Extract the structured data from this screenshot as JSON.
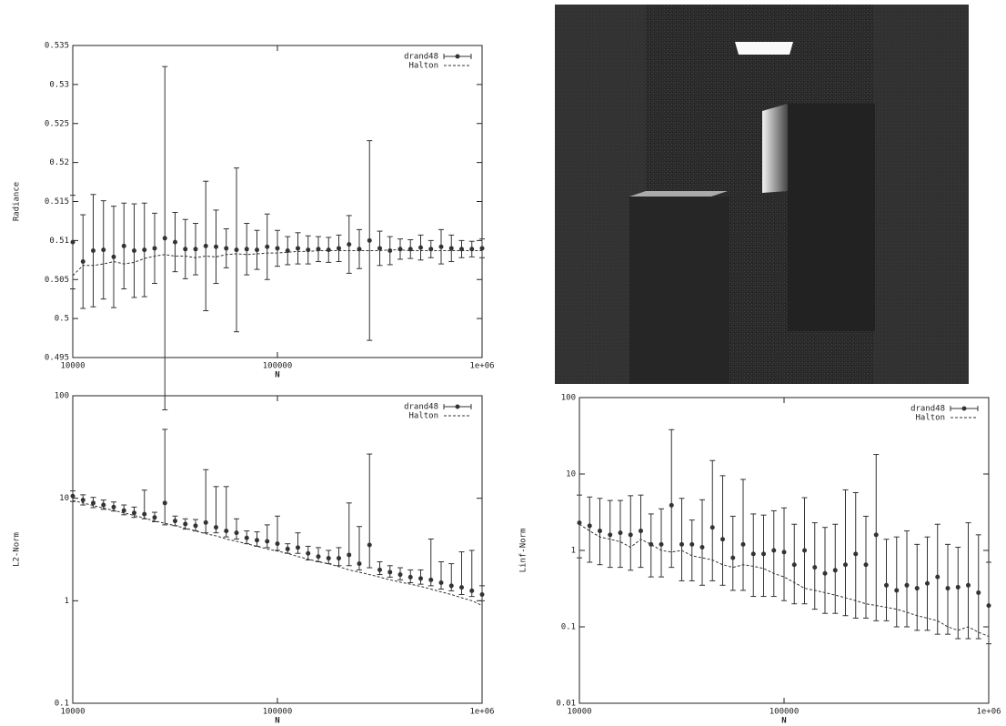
{
  "chart_data": [
    {
      "type": "errorbar",
      "x_label": "N",
      "y_label": "Radiance",
      "xlog": true,
      "ylog": false,
      "legend": "upper right",
      "xlim": [
        10000,
        1000000
      ],
      "xticks": [
        10000,
        100000,
        {
          "value": 1000000,
          "label": "1e+06"
        }
      ],
      "ylim": [
        0.495,
        0.535
      ],
      "yticks": [
        0.495,
        0.5,
        0.505,
        0.51,
        0.515,
        0.52,
        0.525,
        0.53,
        0.535
      ],
      "x": [
        10000,
        11220,
        12589,
        14125,
        15849,
        17783,
        19953,
        22387,
        25119,
        28184,
        31623,
        35481,
        39811,
        44668,
        50119,
        56234,
        63096,
        70795,
        79433,
        89125,
        100000,
        112202,
        125893,
        141254,
        158489,
        177828,
        199526,
        223872,
        251189,
        281838,
        316228,
        354813,
        398107,
        446684,
        501187,
        562341,
        630957,
        707946,
        794328,
        891251,
        1000000
      ],
      "series": [
        {
          "name": "drand48",
          "color": "#333333",
          "style": "errorbar",
          "values": [
            0.5098,
            0.5073,
            0.5087,
            0.5088,
            0.5079,
            0.5093,
            0.5087,
            0.5088,
            0.509,
            0.5103,
            0.5098,
            0.5089,
            0.5089,
            0.5093,
            0.5092,
            0.509,
            0.5088,
            0.5089,
            0.5088,
            0.5092,
            0.509,
            0.5087,
            0.509,
            0.5088,
            0.5089,
            0.5088,
            0.509,
            0.5095,
            0.5089,
            0.51,
            0.509,
            0.5087,
            0.5089,
            0.5089,
            0.5091,
            0.5089,
            0.5092,
            0.509,
            0.5089,
            0.5089,
            0.509
          ],
          "errors": [
            0.006,
            0.006,
            0.0072,
            0.0063,
            0.0065,
            0.0055,
            0.006,
            0.006,
            0.0045,
            0.022,
            0.0038,
            0.0038,
            0.0033,
            0.0083,
            0.0047,
            0.0025,
            0.0105,
            0.0033,
            0.0025,
            0.0042,
            0.0023,
            0.0018,
            0.002,
            0.0018,
            0.0016,
            0.0016,
            0.0017,
            0.0037,
            0.0025,
            0.0128,
            0.0022,
            0.0018,
            0.0013,
            0.0012,
            0.0016,
            0.0011,
            0.0022,
            0.0017,
            0.0011,
            0.001,
            0.0012
          ]
        },
        {
          "name": "Halton",
          "color": "#333333",
          "style": "dashed",
          "values": [
            0.5055,
            0.5068,
            0.5068,
            0.507,
            0.5073,
            0.507,
            0.5072,
            0.5077,
            0.508,
            0.5082,
            0.508,
            0.508,
            0.5078,
            0.508,
            0.5079,
            0.5082,
            0.5083,
            0.5082,
            0.5083,
            0.5084,
            0.5084,
            0.5085,
            0.5086,
            0.5086,
            0.5087,
            0.5087,
            0.5087,
            0.5087,
            0.5087,
            0.5087,
            0.5087,
            0.5088,
            0.5088,
            0.5087,
            0.5087,
            0.5087,
            0.5087,
            0.5087,
            0.5087,
            0.5087,
            0.5087
          ]
        }
      ]
    },
    {
      "type": "errorbar",
      "x_label": "N",
      "y_label": "L2-Norm",
      "xlog": true,
      "ylog": true,
      "legend": "upper right",
      "xlim": [
        10000,
        1000000
      ],
      "xticks": [
        10000,
        100000,
        {
          "value": 1000000,
          "label": "1e+06"
        }
      ],
      "ylim": [
        0.1,
        100
      ],
      "yticks": [
        0.1,
        1,
        10,
        100
      ],
      "x": [
        10000,
        11220,
        12589,
        14125,
        15849,
        17783,
        19953,
        22387,
        25119,
        28184,
        31623,
        35481,
        39811,
        44668,
        50119,
        56234,
        63096,
        70795,
        79433,
        89125,
        100000,
        112202,
        125893,
        141254,
        158489,
        177828,
        199526,
        223872,
        251189,
        281838,
        316228,
        354813,
        398107,
        446684,
        501187,
        562341,
        630957,
        707946,
        794328,
        891251,
        1000000
      ],
      "series": [
        {
          "name": "drand48",
          "color": "#333333",
          "style": "errorbar",
          "values": [
            10.5,
            9.6,
            9.0,
            8.6,
            8.2,
            7.6,
            7.2,
            7.0,
            6.5,
            9.0,
            6.0,
            5.6,
            5.4,
            5.8,
            5.2,
            4.8,
            4.6,
            4.1,
            3.9,
            3.8,
            3.6,
            3.2,
            3.3,
            2.9,
            2.7,
            2.6,
            2.6,
            2.8,
            2.3,
            3.5,
            2.0,
            1.9,
            1.8,
            1.7,
            1.65,
            1.6,
            1.5,
            1.4,
            1.35,
            1.25,
            1.15
          ],
          "low": [
            9.3,
            8.6,
            8.1,
            7.8,
            7.5,
            6.9,
            6.5,
            6.3,
            5.9,
            5.5,
            5.4,
            5.0,
            4.8,
            4.6,
            4.6,
            4.2,
            4.0,
            3.6,
            3.4,
            3.3,
            3.1,
            2.9,
            2.9,
            2.5,
            2.4,
            2.3,
            2.2,
            2.2,
            2.0,
            2.1,
            1.8,
            1.7,
            1.6,
            1.5,
            1.45,
            1.4,
            1.3,
            1.25,
            1.15,
            1.1,
            1.0
          ],
          "high": [
            11.8,
            10.8,
            10.2,
            9.6,
            9.2,
            8.6,
            8.2,
            12.0,
            7.3,
            47,
            6.7,
            6.3,
            6.2,
            19,
            13,
            13,
            6.3,
            4.8,
            4.7,
            5.5,
            6.7,
            3.6,
            4.6,
            3.4,
            3.3,
            3.1,
            3.3,
            9.0,
            5.3,
            27,
            2.4,
            2.2,
            2.1,
            2.0,
            2.0,
            4.0,
            2.4,
            2.3,
            3.0,
            3.1,
            1.4
          ]
        },
        {
          "name": "Halton",
          "color": "#333333",
          "style": "dashed",
          "values": [
            9.5,
            9.0,
            8.5,
            8.0,
            7.6,
            7.2,
            6.8,
            6.4,
            6.0,
            5.7,
            5.4,
            5.1,
            4.8,
            4.5,
            4.3,
            4.0,
            3.8,
            3.6,
            3.4,
            3.2,
            3.05,
            2.9,
            2.7,
            2.55,
            2.4,
            2.3,
            2.15,
            2.0,
            1.9,
            1.8,
            1.7,
            1.6,
            1.52,
            1.45,
            1.38,
            1.3,
            1.22,
            1.15,
            1.07,
            1.0,
            0.9
          ]
        }
      ]
    },
    {
      "type": "errorbar",
      "x_label": "N",
      "y_label": "Linf-Norm",
      "xlog": true,
      "ylog": true,
      "legend": "upper right",
      "xlim": [
        10000,
        1000000
      ],
      "xticks": [
        10000,
        100000,
        {
          "value": 1000000,
          "label": "1e+06"
        }
      ],
      "ylim": [
        0.01,
        100
      ],
      "yticks": [
        0.01,
        0.1,
        1,
        10,
        100
      ],
      "x": [
        10000,
        11220,
        12589,
        14125,
        15849,
        17783,
        19953,
        22387,
        25119,
        28184,
        31623,
        35481,
        39811,
        44668,
        50119,
        56234,
        63096,
        70795,
        79433,
        89125,
        100000,
        112202,
        125893,
        141254,
        158489,
        177828,
        199526,
        223872,
        251189,
        281838,
        316228,
        354813,
        398107,
        446684,
        501187,
        562341,
        630957,
        707946,
        794328,
        891251,
        1000000
      ],
      "series": [
        {
          "name": "drand48",
          "color": "#333333",
          "style": "errorbar",
          "values": [
            2.3,
            2.1,
            1.8,
            1.6,
            1.7,
            1.6,
            1.8,
            1.2,
            1.2,
            3.9,
            1.2,
            1.2,
            1.1,
            2.0,
            1.4,
            0.8,
            1.2,
            0.9,
            0.9,
            1.0,
            0.95,
            0.65,
            1.0,
            0.6,
            0.5,
            0.55,
            0.65,
            0.9,
            0.65,
            1.6,
            0.35,
            0.3,
            0.35,
            0.32,
            0.37,
            0.45,
            0.32,
            0.33,
            0.35,
            0.28,
            0.19
          ],
          "low": [
            0.8,
            0.7,
            0.65,
            0.6,
            0.6,
            0.55,
            0.6,
            0.45,
            0.45,
            0.6,
            0.4,
            0.4,
            0.35,
            0.4,
            0.35,
            0.3,
            0.3,
            0.25,
            0.25,
            0.25,
            0.22,
            0.2,
            0.2,
            0.17,
            0.15,
            0.15,
            0.14,
            0.13,
            0.13,
            0.12,
            0.12,
            0.1,
            0.1,
            0.09,
            0.09,
            0.08,
            0.08,
            0.07,
            0.07,
            0.07,
            0.06
          ],
          "high": [
            5.3,
            5.0,
            4.8,
            4.5,
            4.5,
            5.2,
            5.3,
            3.0,
            3.5,
            38,
            4.8,
            2.5,
            4.6,
            15,
            9.5,
            2.8,
            8.5,
            3.0,
            2.9,
            3.3,
            3.6,
            2.2,
            4.9,
            2.3,
            2.0,
            2.2,
            6.2,
            5.7,
            2.8,
            18,
            1.4,
            1.5,
            1.8,
            1.2,
            1.5,
            2.2,
            1.2,
            1.1,
            2.3,
            1.6,
            0.7
          ]
        },
        {
          "name": "Halton",
          "color": "#333333",
          "style": "dashed",
          "values": [
            2.2,
            1.8,
            1.5,
            1.4,
            1.3,
            1.1,
            1.4,
            1.2,
            1.0,
            0.95,
            1.0,
            0.85,
            0.8,
            0.75,
            0.65,
            0.6,
            0.65,
            0.62,
            0.58,
            0.5,
            0.45,
            0.38,
            0.32,
            0.3,
            0.28,
            0.26,
            0.24,
            0.22,
            0.2,
            0.19,
            0.18,
            0.17,
            0.155,
            0.14,
            0.13,
            0.12,
            0.1,
            0.09,
            0.1,
            0.085,
            0.075
          ]
        }
      ]
    }
  ]
}
